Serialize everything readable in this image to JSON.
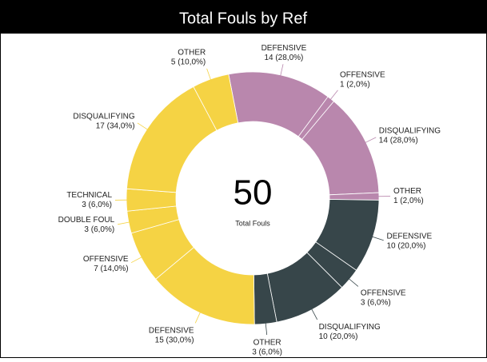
{
  "chart_data": {
    "type": "donut",
    "title": "Total Fouls by Ref",
    "center_value": 50,
    "center_label": "Total Fouls",
    "categories": [
      "DEFENSIVE",
      "OFFENSIVE",
      "DISQUALIFYING",
      "OTHER",
      "DEFENSIVE",
      "OFFENSIVE",
      "DISQUALIFYING",
      "OTHER",
      "DEFENSIVE",
      "OFFENSIVE",
      "DOUBLE FOUL",
      "TECHNICAL",
      "DISQUALIFYING",
      "OTHER"
    ],
    "values": [
      14,
      1,
      14,
      1,
      10,
      3,
      10,
      3,
      15,
      7,
      3,
      3,
      17,
      5
    ],
    "value_labels": [
      "14 (28,0%)",
      "1 (2,0%)",
      "14 (28,0%)",
      "1 (2,0%)",
      "10 (20,0%)",
      "3 (6,0%)",
      "10 (20,0%)",
      "3 (6,0%)",
      "15 (30,0%)",
      "7 (14,0%)",
      "3 (6,0%)",
      "3 (6,0%)",
      "17 (34,0%)",
      "5 (10,0%)"
    ],
    "colors": [
      "#b987ad",
      "#b987ad",
      "#b987ad",
      "#b987ad",
      "#37464a",
      "#37464a",
      "#37464a",
      "#37464a",
      "#f5d344",
      "#f5d344",
      "#f5d344",
      "#f5d344",
      "#f5d344",
      "#f5d344"
    ]
  }
}
